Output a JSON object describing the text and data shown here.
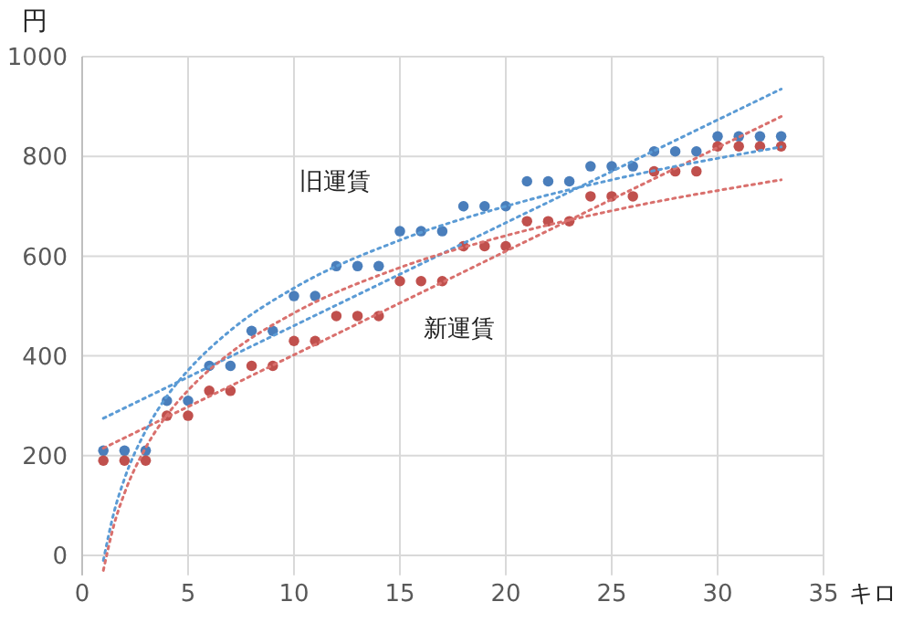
{
  "chart_data": {
    "type": "scatter",
    "xlabel": "キロ",
    "ylabel": "円",
    "xlim": [
      0,
      35
    ],
    "xticks": [
      0,
      5,
      10,
      15,
      20,
      25,
      30,
      35
    ],
    "ylim": [
      -40,
      1000
    ],
    "yticks": [
      0,
      200,
      400,
      600,
      800,
      1000
    ],
    "grid": true,
    "marker": "circle",
    "x": [
      1,
      2,
      3,
      4,
      5,
      6,
      7,
      8,
      9,
      10,
      11,
      12,
      13,
      14,
      15,
      16,
      17,
      18,
      19,
      20,
      21,
      22,
      23,
      24,
      25,
      26,
      27,
      28,
      29,
      30,
      31,
      32,
      33
    ],
    "series": [
      {
        "name": "旧運賃",
        "color": "#4a7ebb",
        "values": [
          210,
          210,
          210,
          310,
          310,
          380,
          380,
          450,
          450,
          520,
          520,
          580,
          580,
          580,
          650,
          650,
          650,
          700,
          700,
          700,
          750,
          750,
          750,
          780,
          780,
          780,
          810,
          810,
          810,
          840,
          840,
          840,
          840
        ]
      },
      {
        "name": "新運賃",
        "color": "#c0504d",
        "values": [
          190,
          190,
          190,
          280,
          280,
          330,
          330,
          380,
          380,
          430,
          430,
          480,
          480,
          480,
          550,
          550,
          550,
          620,
          620,
          620,
          670,
          670,
          670,
          720,
          720,
          720,
          770,
          770,
          770,
          820,
          820,
          820,
          820
        ]
      },
      {
        "type": "line",
        "line_style": "dotted",
        "marker": "none",
        "color": "#5b9bd5",
        "x": [
          1,
          33
        ],
        "values": [
          275,
          935
        ]
      },
      {
        "type": "line",
        "line_style": "dotted",
        "marker": "none",
        "color": "#d9706d",
        "x": [
          1,
          33
        ],
        "values": [
          215,
          880
        ]
      },
      {
        "type": "line",
        "line_style": "dotted",
        "marker": "none",
        "color": "#5b9bd5",
        "x": [
          1,
          1.5,
          2,
          3,
          4,
          5,
          7,
          10,
          15,
          20,
          25,
          33
        ],
        "values": [
          -10,
          86,
          154,
          250,
          319,
          371,
          451,
          536,
          632,
          700,
          753,
          819
        ]
      },
      {
        "type": "line",
        "line_style": "dotted",
        "marker": "none",
        "color": "#d9706d",
        "x": [
          1,
          1.5,
          2,
          3,
          4,
          5,
          7,
          10,
          15,
          20,
          25,
          33
        ],
        "values": [
          -30,
          61,
          125,
          216,
          281,
          331,
          406,
          486,
          577,
          641,
          691,
          753
        ]
      }
    ]
  }
}
